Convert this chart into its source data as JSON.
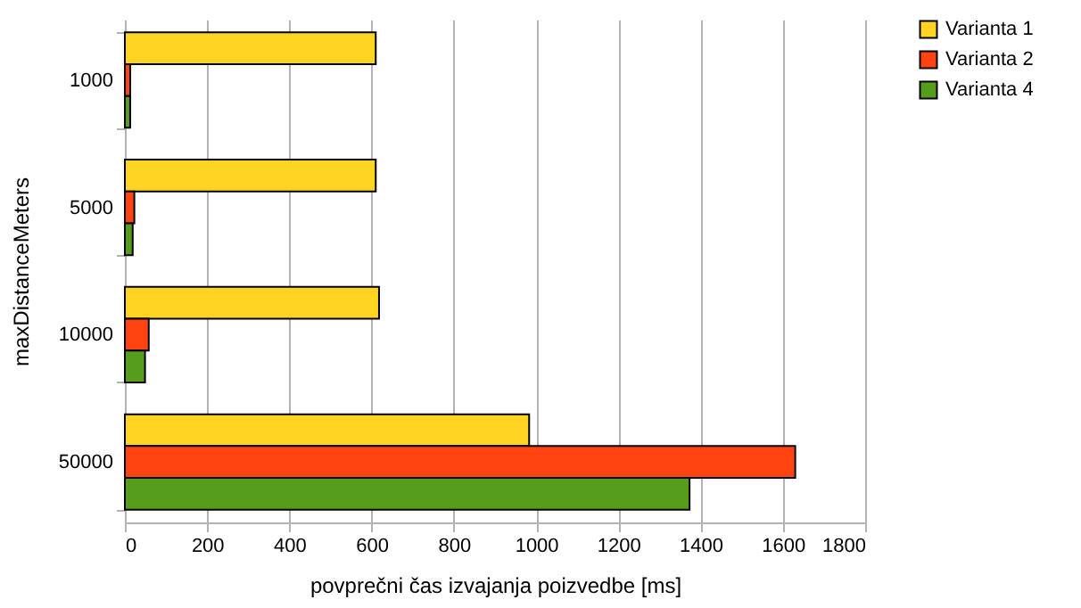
{
  "chart_data": {
    "type": "bar",
    "orientation": "horizontal",
    "xlabel": "povprečni čas izvajanja poizvedbe [ms]",
    "ylabel": "maxDistanceMeters",
    "categories": [
      "1000",
      "5000",
      "10000",
      "50000"
    ],
    "series": [
      {
        "name": "Varianta 1",
        "color": "#ffd321",
        "values": [
          610,
          610,
          618,
          983
        ]
      },
      {
        "name": "Varianta 2",
        "color": "#ff4411",
        "values": [
          13,
          23,
          58,
          1630
        ]
      },
      {
        "name": "Varianta 4",
        "color": "#579d1c",
        "values": [
          13,
          19,
          49,
          1373
        ]
      }
    ],
    "xlim": [
      0,
      1800
    ],
    "xticks": [
      0,
      200,
      400,
      600,
      800,
      1000,
      1200,
      1400,
      1600,
      1800
    ],
    "grid": "x",
    "legend": "right"
  }
}
